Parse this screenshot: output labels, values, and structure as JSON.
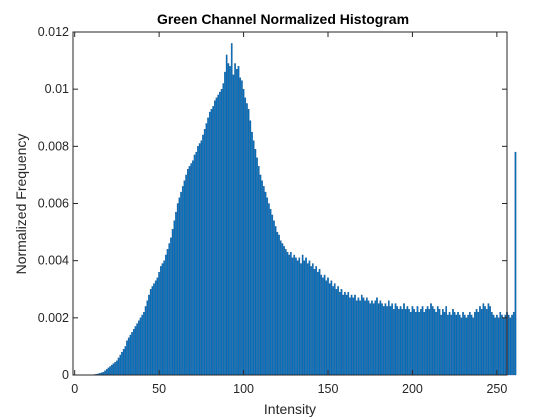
{
  "chart_data": {
    "type": "bar",
    "title": "Green Channel Normalized Histogram",
    "xlabel": "Intensity",
    "ylabel": "Normalized Frequency",
    "xlim": [
      -1,
      256
    ],
    "ylim": [
      0,
      0.012
    ],
    "x_ticks": [
      0,
      50,
      100,
      150,
      200,
      250
    ],
    "x_tick_labels": [
      "0",
      "50",
      "100",
      "150",
      "200",
      "250"
    ],
    "y_ticks": [
      0,
      0.002,
      0.004,
      0.006,
      0.008,
      0.01,
      0.012
    ],
    "y_tick_labels": [
      "0",
      "0.002",
      "0.004",
      "0.006",
      "0.008",
      "0.01",
      "0.012"
    ],
    "grid": false,
    "box": true,
    "bar_color": "#0072BD",
    "bar_edge_color": "#1f4e8c",
    "x_start": 0,
    "values": [
      0,
      0,
      0,
      0,
      0,
      0,
      0,
      0,
      0,
      0,
      0,
      0,
      2e-05,
      3e-05,
      4e-05,
      6e-05,
      8e-05,
      0.0001,
      0.00015,
      0.0002,
      0.00025,
      0.0003,
      0.00035,
      0.0004,
      0.00045,
      0.0005,
      0.0006,
      0.0007,
      0.0008,
      0.0009,
      0.001,
      0.0012,
      0.0013,
      0.0014,
      0.0015,
      0.0016,
      0.0017,
      0.0018,
      0.0019,
      0.002,
      0.0021,
      0.0022,
      0.0024,
      0.0026,
      0.0028,
      0.003,
      0.0031,
      0.0032,
      0.0033,
      0.0034,
      0.0036,
      0.0038,
      0.0039,
      0.004,
      0.0042,
      0.0044,
      0.0046,
      0.0048,
      0.0051,
      0.0054,
      0.0057,
      0.006,
      0.0062,
      0.0064,
      0.0066,
      0.0068,
      0.007,
      0.0072,
      0.0073,
      0.0074,
      0.0075,
      0.0077,
      0.0078,
      0.008,
      0.0081,
      0.0082,
      0.0084,
      0.0086,
      0.0088,
      0.009,
      0.0092,
      0.0093,
      0.0094,
      0.0096,
      0.0097,
      0.0098,
      0.0099,
      0.01,
      0.0102,
      0.0106,
      0.0112,
      0.0109,
      0.0108,
      0.0116,
      0.0105,
      0.0109,
      0.0107,
      0.0108,
      0.0104,
      0.0103,
      0.01,
      0.0097,
      0.0095,
      0.0093,
      0.0089,
      0.0085,
      0.0082,
      0.0079,
      0.0076,
      0.0073,
      0.007,
      0.0068,
      0.0066,
      0.0064,
      0.0062,
      0.006,
      0.0058,
      0.0056,
      0.0054,
      0.0052,
      0.005,
      0.0049,
      0.0047,
      0.0046,
      0.0045,
      0.0044,
      0.0043,
      0.0042,
      0.0043,
      0.0041,
      0.0042,
      0.0041,
      0.004,
      0.0041,
      0.0039,
      0.0042,
      0.004,
      0.0041,
      0.0039,
      0.004,
      0.0038,
      0.0039,
      0.0037,
      0.0038,
      0.0036,
      0.0037,
      0.0035,
      0.0034,
      0.0035,
      0.0033,
      0.0034,
      0.0032,
      0.0033,
      0.0031,
      0.0032,
      0.003,
      0.0031,
      0.0029,
      0.003,
      0.0028,
      0.0029,
      0.0028,
      0.0029,
      0.0027,
      0.0028,
      0.0027,
      0.0028,
      0.0026,
      0.0027,
      0.0026,
      0.0028,
      0.0027,
      0.0026,
      0.0027,
      0.0026,
      0.0025,
      0.0026,
      0.0025,
      0.0026,
      0.0027,
      0.0025,
      0.0026,
      0.0025,
      0.0024,
      0.0025,
      0.0024,
      0.0026,
      0.0024,
      0.0025,
      0.0023,
      0.0025,
      0.0024,
      0.0023,
      0.0024,
      0.0023,
      0.0025,
      0.0023,
      0.0024,
      0.0023,
      0.0022,
      0.0024,
      0.0023,
      0.0022,
      0.0024,
      0.0022,
      0.0023,
      0.0024,
      0.0022,
      0.0023,
      0.0024,
      0.0023,
      0.0025,
      0.0024,
      0.0023,
      0.0022,
      0.0024,
      0.0023,
      0.0021,
      0.0023,
      0.0022,
      0.0024,
      0.0021,
      0.0022,
      0.0021,
      0.0023,
      0.0022,
      0.0021,
      0.0022,
      0.0021,
      0.002,
      0.0022,
      0.0021,
      0.002,
      0.0021,
      0.0022,
      0.0021,
      0.002,
      0.0022,
      0.0023,
      0.0022,
      0.0024,
      0.0023,
      0.0025,
      0.0024,
      0.0023,
      0.0025,
      0.0024,
      0.0022,
      0.0021,
      0.002,
      0.0021,
      0.002,
      0.0022,
      0.0021,
      0.002,
      0.0021,
      0.0022,
      0.0021,
      0.002,
      0.0021,
      0.0022,
      0.0078
    ]
  }
}
